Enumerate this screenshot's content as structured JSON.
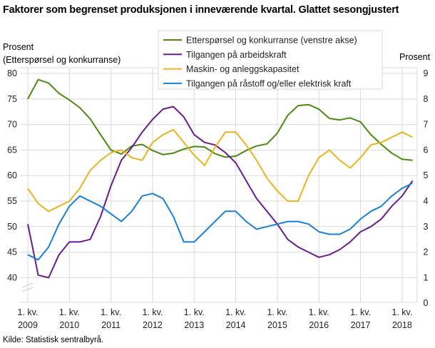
{
  "title": "Faktorer som begrenset produksjonen i inneværende kvartal. Glattet sesongjustert",
  "source": "Kilde: Statistisk sentralbyrå.",
  "chart_data": {
    "type": "line",
    "left_axis": {
      "label_line1": "Prosent",
      "label_line2": "(Etterspørsel og konkurranse)",
      "range": [
        40,
        80
      ],
      "ticks": [
        "80",
        "75",
        "70",
        "65",
        "60",
        "55",
        "50",
        "45",
        "40"
      ],
      "broken": true
    },
    "right_axis": {
      "label": "Prosent",
      "range": [
        0,
        9
      ],
      "ticks": [
        "9",
        "8",
        "7",
        "6",
        "5",
        "4",
        "3",
        "2",
        "1",
        "0"
      ]
    },
    "x_ticks": [
      {
        "q": "1. kv.",
        "year": "2009"
      },
      {
        "q": "1. kv.",
        "year": "2010"
      },
      {
        "q": "1. kv.",
        "year": "2011"
      },
      {
        "q": "1. kv.",
        "year": "2012"
      },
      {
        "q": "1. kv.",
        "year": "2013"
      },
      {
        "q": "1. kv.",
        "year": "2014"
      },
      {
        "q": "1. kv.",
        "year": "2015"
      },
      {
        "q": "1. kv.",
        "year": "2016"
      },
      {
        "q": "1. kv.",
        "year": "2017"
      },
      {
        "q": "1. kv.",
        "year": "2018"
      }
    ],
    "x_range": [
      "2009K1",
      "2018K2"
    ],
    "grid": true,
    "legend_position": "top-center",
    "series": [
      {
        "name": "Etterspørsel og konkurranse (venstre akse)",
        "axis": "left",
        "color": "#4b8a0f",
        "values": [
          75.0,
          78.8,
          78.1,
          76.1,
          74.8,
          73.3,
          71.1,
          68.0,
          65.0,
          64.2,
          65.8,
          66.1,
          64.9,
          64.1,
          64.4,
          65.2,
          65.7,
          65.6,
          64.3,
          63.6,
          63.8,
          64.9,
          65.8,
          66.2,
          68.3,
          71.8,
          73.7,
          73.9,
          73.0,
          71.2,
          70.9,
          71.3,
          70.5,
          68.0,
          66.1,
          64.4,
          63.2,
          63.0
        ]
      },
      {
        "name": "Tilgangen på arbeidskraft",
        "axis": "right",
        "color": "#6a1b8f",
        "values": [
          3.1,
          1.1,
          1.0,
          1.9,
          2.4,
          2.4,
          2.5,
          3.4,
          4.6,
          5.6,
          6.1,
          6.7,
          7.2,
          7.6,
          7.7,
          7.3,
          6.6,
          6.3,
          6.2,
          5.9,
          5.5,
          4.8,
          4.1,
          3.6,
          3.1,
          2.5,
          2.2,
          2.0,
          1.8,
          1.9,
          2.1,
          2.4,
          2.8,
          3.0,
          3.3,
          3.8,
          4.2,
          4.8
        ]
      },
      {
        "name": "Maskin- og anleggskapasitet",
        "axis": "right",
        "color": "#ecb31f",
        "values": [
          4.5,
          3.9,
          3.6,
          3.8,
          4.0,
          4.5,
          5.2,
          5.6,
          5.9,
          6.0,
          5.7,
          5.6,
          6.3,
          6.6,
          6.8,
          6.3,
          5.8,
          5.4,
          6.1,
          6.7,
          6.7,
          6.2,
          5.6,
          4.9,
          4.4,
          4.0,
          4.0,
          5.0,
          5.7,
          6.0,
          5.6,
          5.3,
          5.7,
          6.2,
          6.3,
          6.5,
          6.7,
          6.5
        ]
      },
      {
        "name": "Tilgangen på råstoff og/eller elektrisk kraft",
        "axis": "right",
        "color": "#1a7fd6",
        "values": [
          1.9,
          1.7,
          2.2,
          3.1,
          3.8,
          4.2,
          4.0,
          3.8,
          3.5,
          3.2,
          3.6,
          4.2,
          4.3,
          4.1,
          3.4,
          2.4,
          2.4,
          2.8,
          3.2,
          3.6,
          3.6,
          3.2,
          2.9,
          3.0,
          3.1,
          3.2,
          3.2,
          3.1,
          2.8,
          2.7,
          2.7,
          2.9,
          3.3,
          3.6,
          3.8,
          4.2,
          4.5,
          4.7
        ]
      }
    ]
  }
}
